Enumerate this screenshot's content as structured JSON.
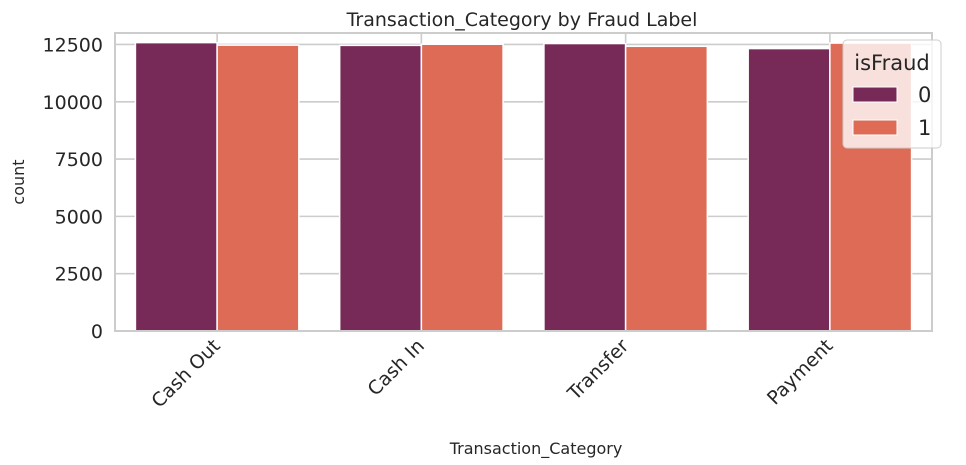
{
  "chart_data": {
    "type": "bar",
    "title": "Transaction_Category by Fraud Label",
    "xlabel": "Transaction_Category",
    "ylabel": "count",
    "categories": [
      "Cash Out",
      "Cash In",
      "Transfer",
      "Payment"
    ],
    "series": [
      {
        "name": "0",
        "color": "#772957",
        "values": [
          12580,
          12460,
          12540,
          12320
        ]
      },
      {
        "name": "1",
        "color": "#dd6b55",
        "values": [
          12470,
          12510,
          12420,
          12560
        ]
      }
    ],
    "ylim": [
      0,
      13000
    ],
    "yticks": [
      0,
      2500,
      5000,
      7500,
      10000,
      12500
    ],
    "ytick_labels": [
      "0",
      "2500",
      "5000",
      "7500",
      "10000",
      "12500"
    ],
    "grid": true,
    "legend": {
      "title": "isFraud",
      "position": "top-right",
      "labels": [
        "0",
        "1"
      ]
    }
  }
}
